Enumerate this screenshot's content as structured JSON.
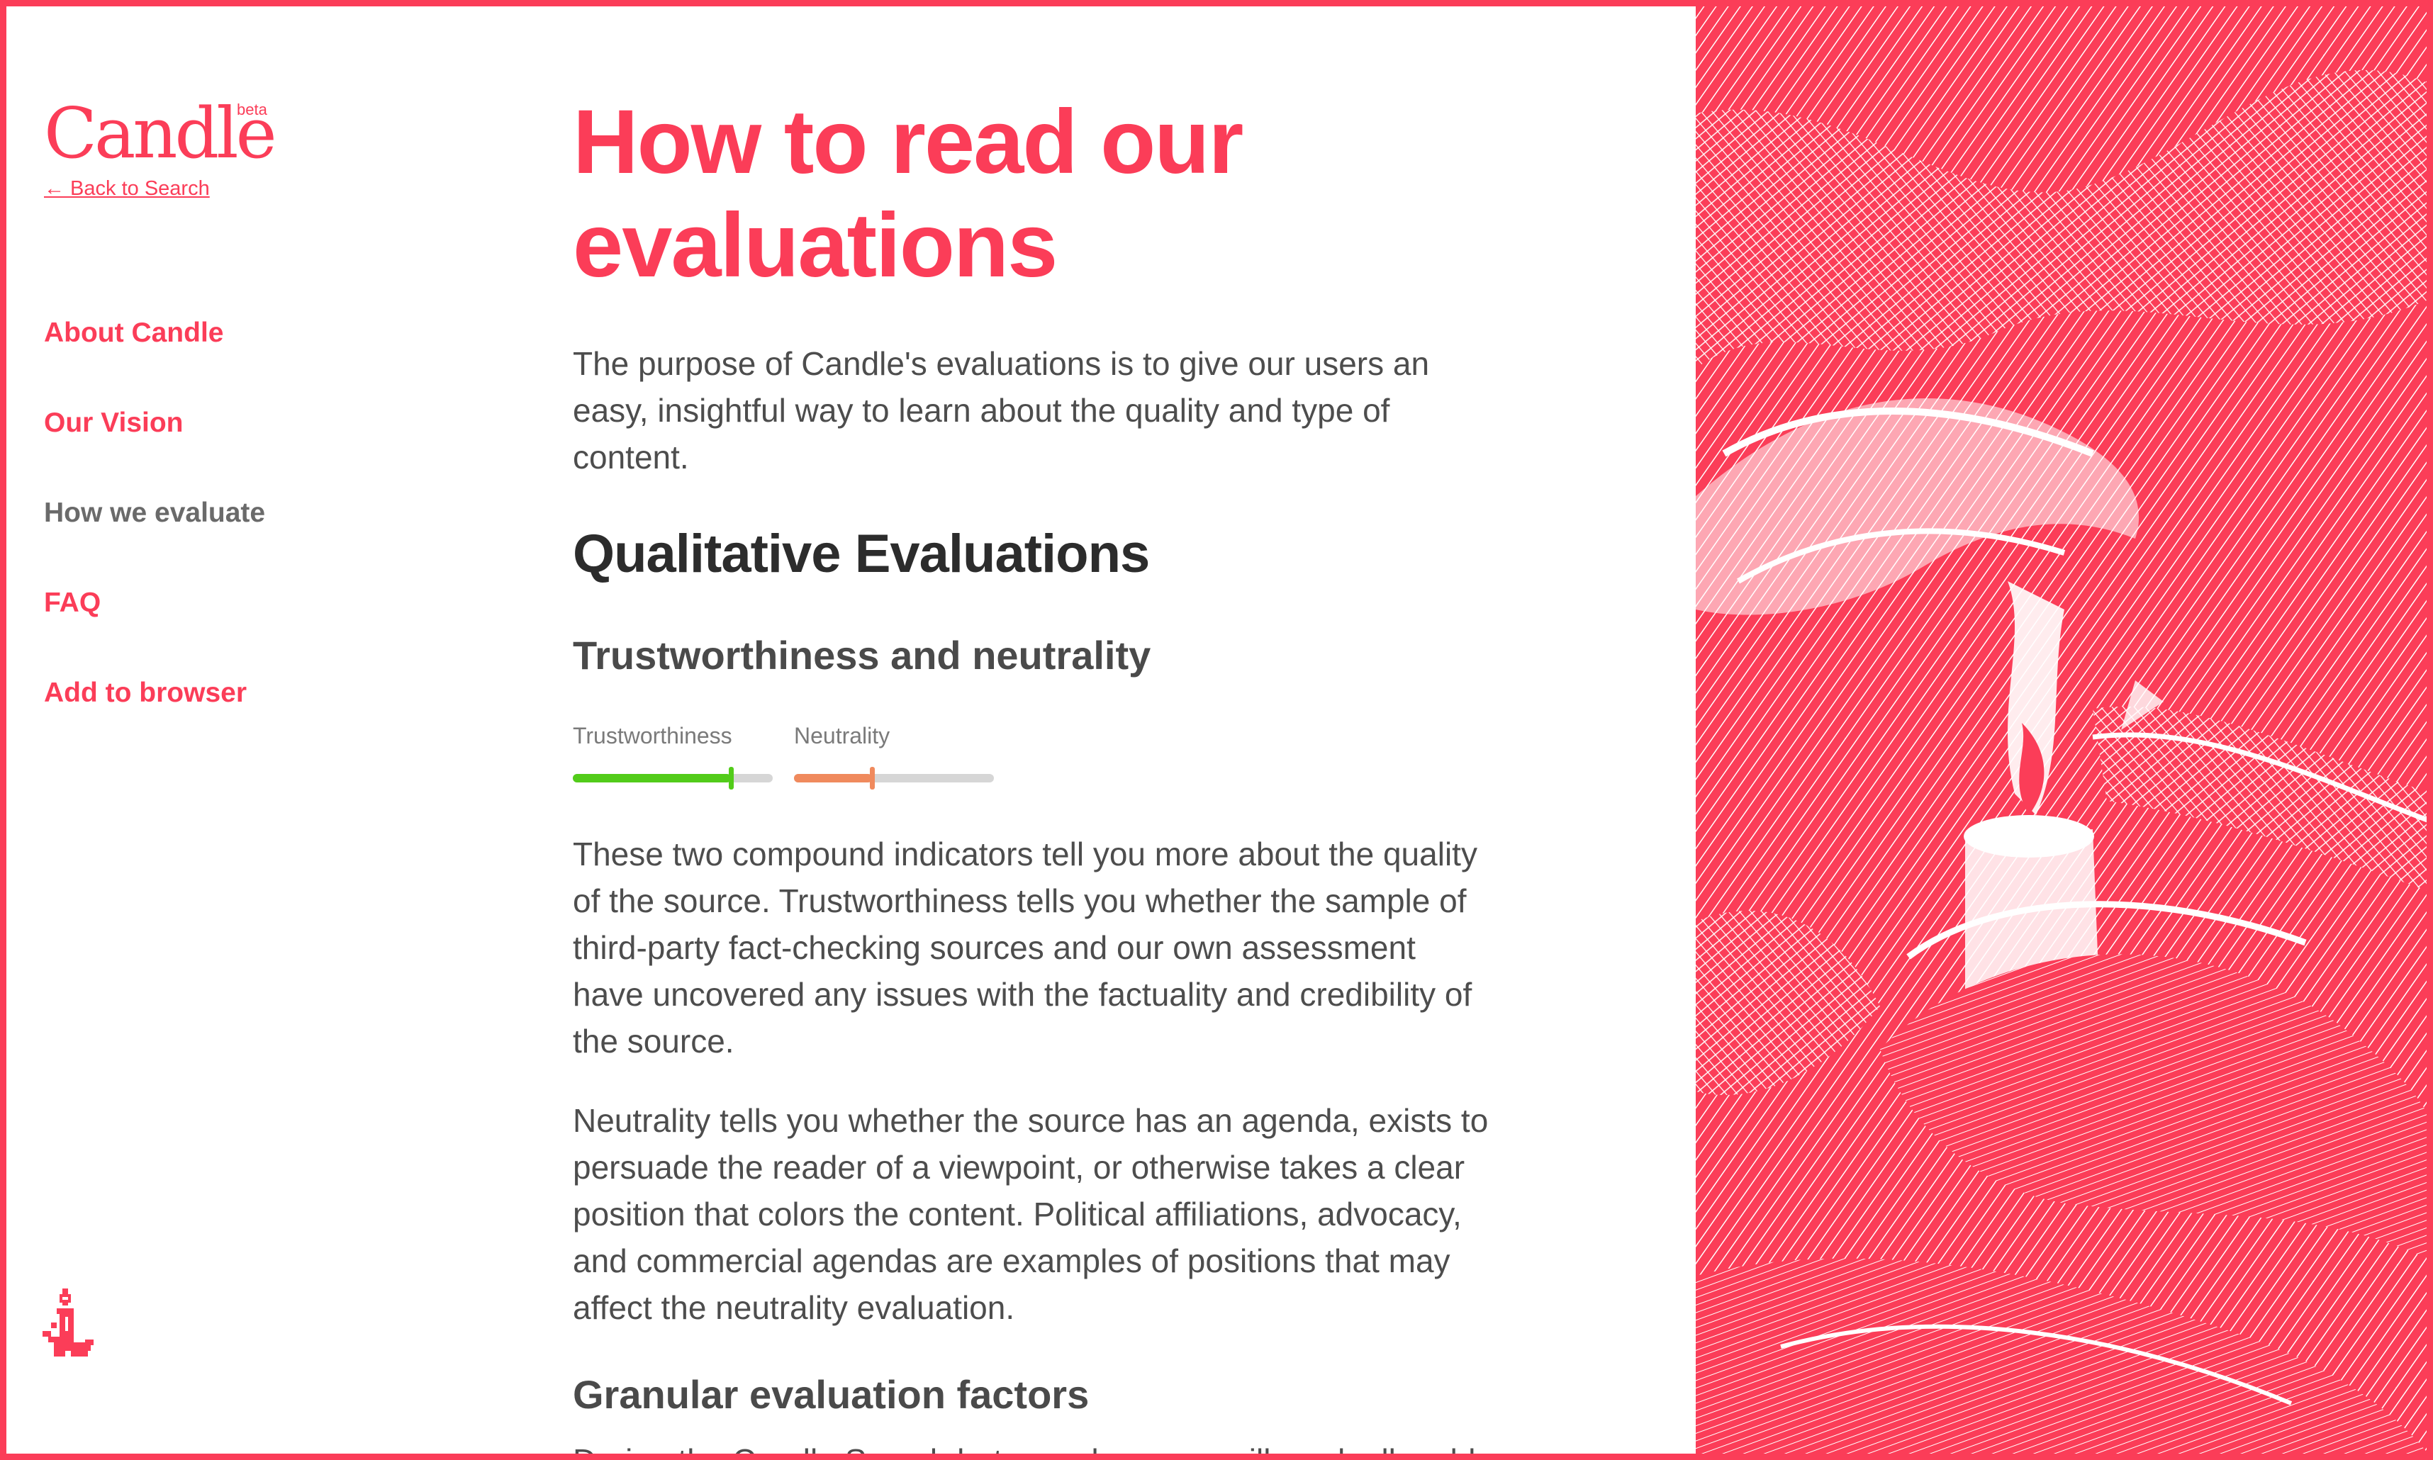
{
  "brand": {
    "name": "Candle",
    "badge": "beta",
    "back_link": "← Back to Search",
    "accent": "#fb3d58"
  },
  "nav": {
    "items": [
      {
        "label": "About Candle",
        "current": false
      },
      {
        "label": "Our Vision",
        "current": false
      },
      {
        "label": "How we evaluate",
        "current": true
      },
      {
        "label": "FAQ",
        "current": false
      },
      {
        "label": "Add to browser",
        "current": false
      }
    ]
  },
  "main": {
    "title": "How to read our evaluations",
    "intro": "The purpose of Candle's evaluations is to give our users an easy, insightful way to learn about the quality and type of content.",
    "section_heading": "Qualitative Evaluations",
    "subheading": "Trustworthiness and neutrality",
    "indicators": [
      {
        "label": "Trustworthiness",
        "value": 0.79,
        "color": "#52cc1a"
      },
      {
        "label": "Neutrality",
        "value": 0.39,
        "color": "#f08a5d"
      }
    ],
    "paragraph_1": "These two compound indicators tell you more about the quality of the source. Trustworthiness tells you whether the sample of third-party fact-checking sources and our own assessment have uncovered any issues with the factuality and credibility of the source.",
    "paragraph_2": "Neutrality tells you whether the source has an agenda, exists to persuade the reader of a viewpoint, or otherwise takes a clear position that colors the content. Political affiliations, advocacy, and commercial agendas are examples of positions that may affect the neutrality evaluation.",
    "subheading_2": "Granular evaluation factors",
    "paragraph_3_partial": "During the Candle Search beta, each source will gradually add"
  },
  "icons": {
    "candle": "candle-pixel-icon",
    "artwork": "engraved-hands-candle-illustration"
  }
}
